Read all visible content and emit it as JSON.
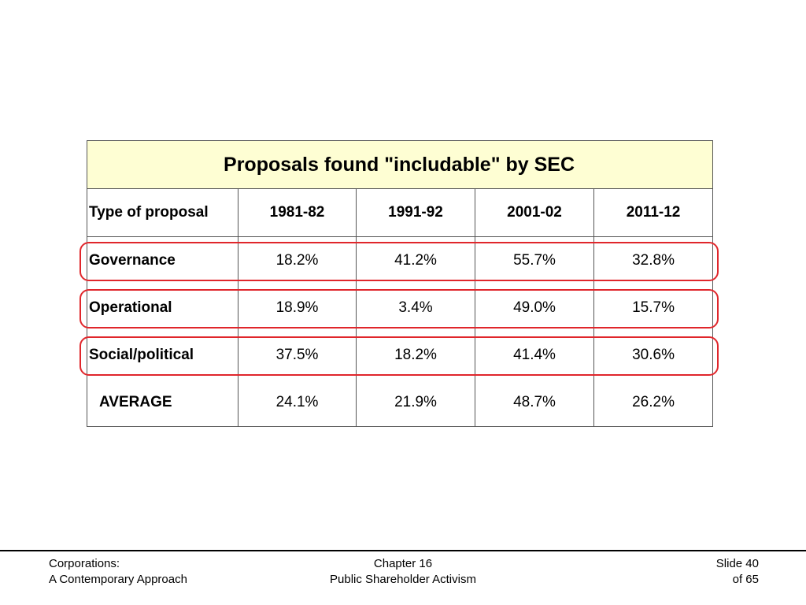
{
  "table": {
    "title": "Proposals found \"includable\" by SEC",
    "header": {
      "type_label": "Type of proposal",
      "periods": [
        "1981-82",
        "1991-92",
        "2001-02",
        "2011-12"
      ]
    },
    "rows": [
      {
        "label": "Governance",
        "values": [
          "18.2%",
          "41.2%",
          "55.7%",
          "32.8%"
        ],
        "highlighted": true
      },
      {
        "label": "Operational",
        "values": [
          "18.9%",
          "3.4%",
          "49.0%",
          "15.7%"
        ],
        "highlighted": true
      },
      {
        "label": "Social/political",
        "values": [
          "37.5%",
          "18.2%",
          "41.4%",
          "30.6%"
        ],
        "highlighted": true
      },
      {
        "label": "AVERAGE",
        "values": [
          "24.1%",
          "21.9%",
          "48.7%",
          "26.2%"
        ],
        "highlighted": false
      }
    ]
  },
  "highlight_color": "#e0262b",
  "title_background": "#fefed3",
  "footer": {
    "left_line1": "Corporations:",
    "left_line2": "A Contemporary Approach",
    "center_line1": "Chapter 16",
    "center_line2": "Public Shareholder Activism",
    "right_line1": "Slide 40",
    "right_line2": "of 65"
  }
}
